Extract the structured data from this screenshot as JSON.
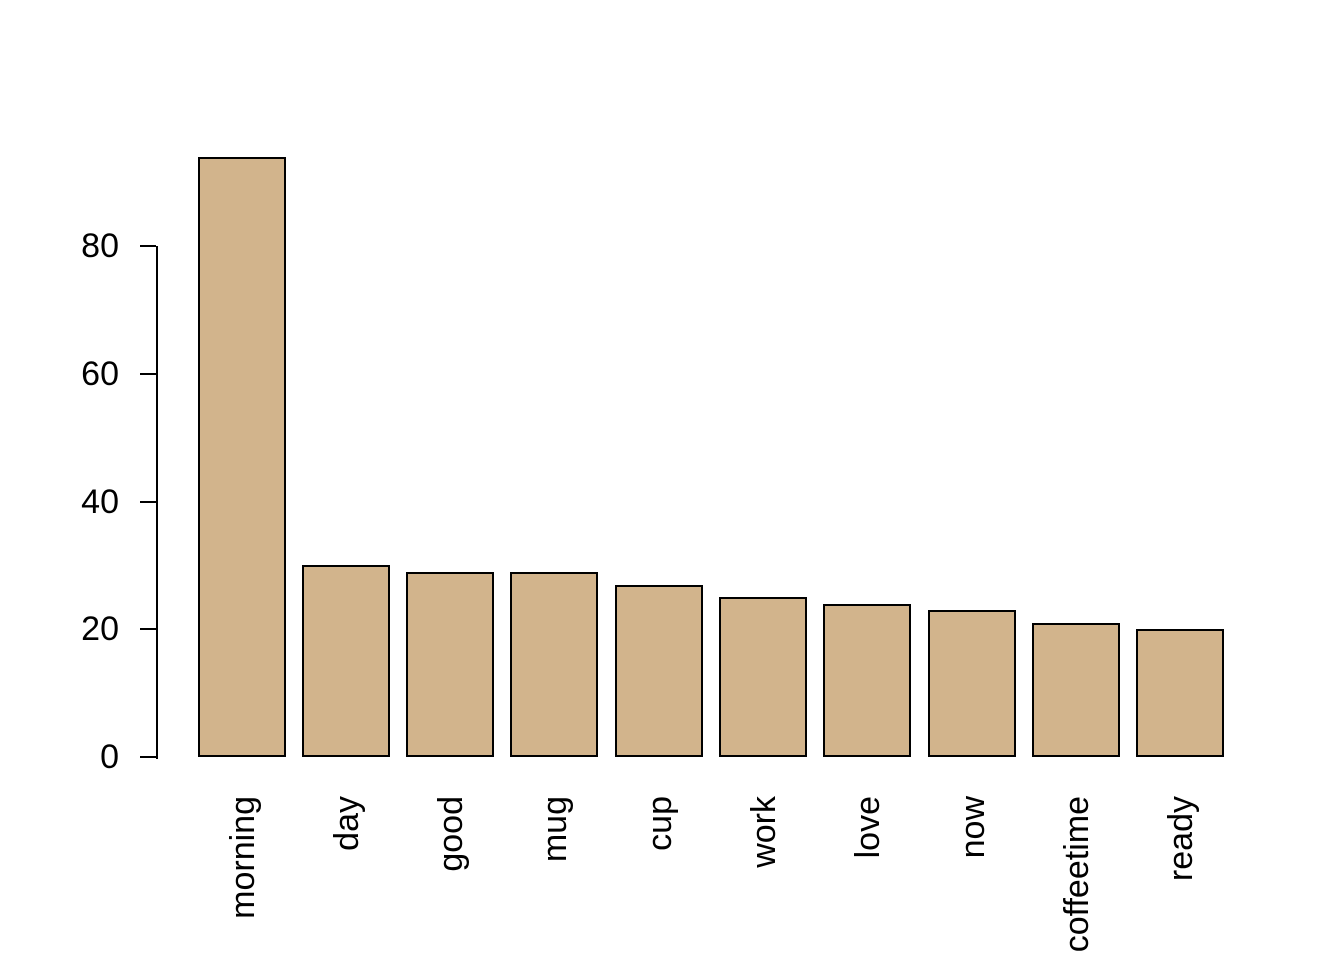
{
  "chart_data": {
    "type": "bar",
    "title": "",
    "xlabel": "",
    "ylabel": "",
    "categories": [
      "morning",
      "day",
      "good",
      "mug",
      "cup",
      "work",
      "love",
      "now",
      "coffeetime",
      "ready"
    ],
    "values": [
      94,
      30,
      29,
      29,
      27,
      25,
      24,
      23,
      21,
      20
    ],
    "yticks": [
      0,
      20,
      40,
      60,
      80
    ],
    "ylim": [
      0,
      96
    ],
    "grid": false,
    "legend": false,
    "x_label_rotation_deg": 90,
    "bar_fill": "#D2B48C",
    "bar_border": "#000000",
    "axis_color": "#000000",
    "text_color": "#000000",
    "background": "#FFFFFF"
  }
}
